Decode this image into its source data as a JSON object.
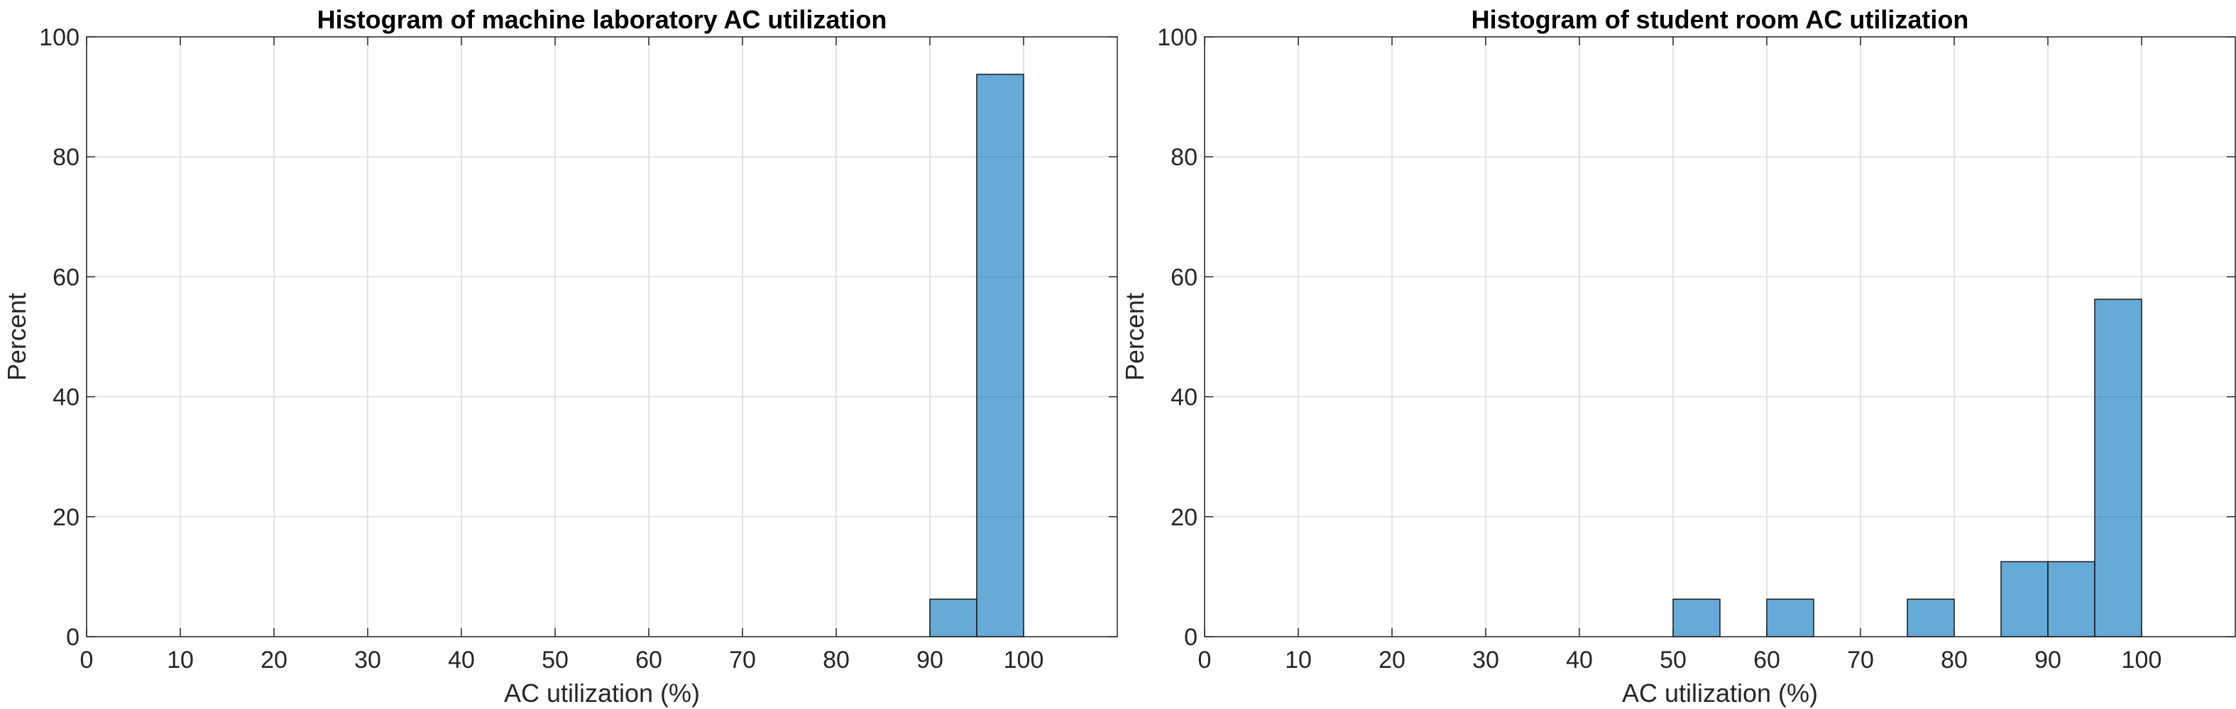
{
  "chart_data": [
    {
      "type": "bar",
      "title": "Histogram of machine laboratory AC utilization",
      "xlabel": "AC utilization (%)",
      "ylabel": "Percent",
      "xlim": [
        0,
        110
      ],
      "ylim": [
        0,
        100
      ],
      "xticks": [
        "0",
        "10",
        "20",
        "30",
        "40",
        "50",
        "60",
        "70",
        "80",
        "90",
        "100"
      ],
      "yticks": [
        "0",
        "20",
        "40",
        "60",
        "80",
        "100"
      ],
      "bin_width": 5,
      "bin_edges": [
        90,
        95
      ],
      "values": [
        6.25,
        93.75
      ],
      "grid": true,
      "bar_color": "#0072BD"
    },
    {
      "type": "bar",
      "title": "Histogram of student room AC utilization",
      "xlabel": "AC utilization (%)",
      "ylabel": "Percent",
      "xlim": [
        0,
        110
      ],
      "ylim": [
        0,
        100
      ],
      "xticks": [
        "0",
        "10",
        "20",
        "30",
        "40",
        "50",
        "60",
        "70",
        "80",
        "90",
        "100"
      ],
      "yticks": [
        "0",
        "20",
        "40",
        "60",
        "80",
        "100"
      ],
      "bin_width": 5,
      "bin_edges": [
        50,
        60,
        75,
        85,
        90,
        95
      ],
      "values": [
        6.25,
        6.25,
        6.25,
        12.5,
        12.5,
        56.25
      ],
      "grid": true,
      "bar_color": "#0072BD"
    }
  ]
}
